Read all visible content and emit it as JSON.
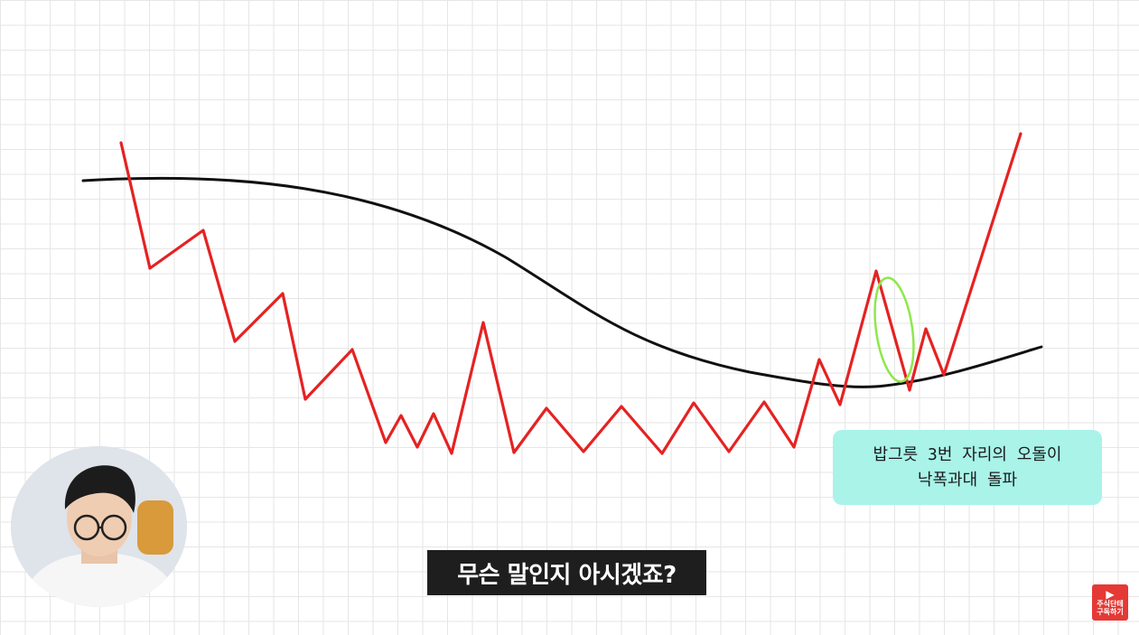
{
  "annotation": {
    "line1": "밥그릇 3번 자리의 오돌이",
    "line2": "낙폭과대 돌파"
  },
  "subtitle": "무슨 말인지 아시겠죠?",
  "channel_logo": {
    "icon": "play-icon",
    "line1": "주식단테",
    "line2": "구독하기"
  },
  "colors": {
    "price_line": "#e52222",
    "moving_average": "#111111",
    "highlight": "#8ee84a",
    "note_bg": "#a9f3e9",
    "caption_bg": "#1e1e1e",
    "logo_bg": "#e53935"
  }
}
